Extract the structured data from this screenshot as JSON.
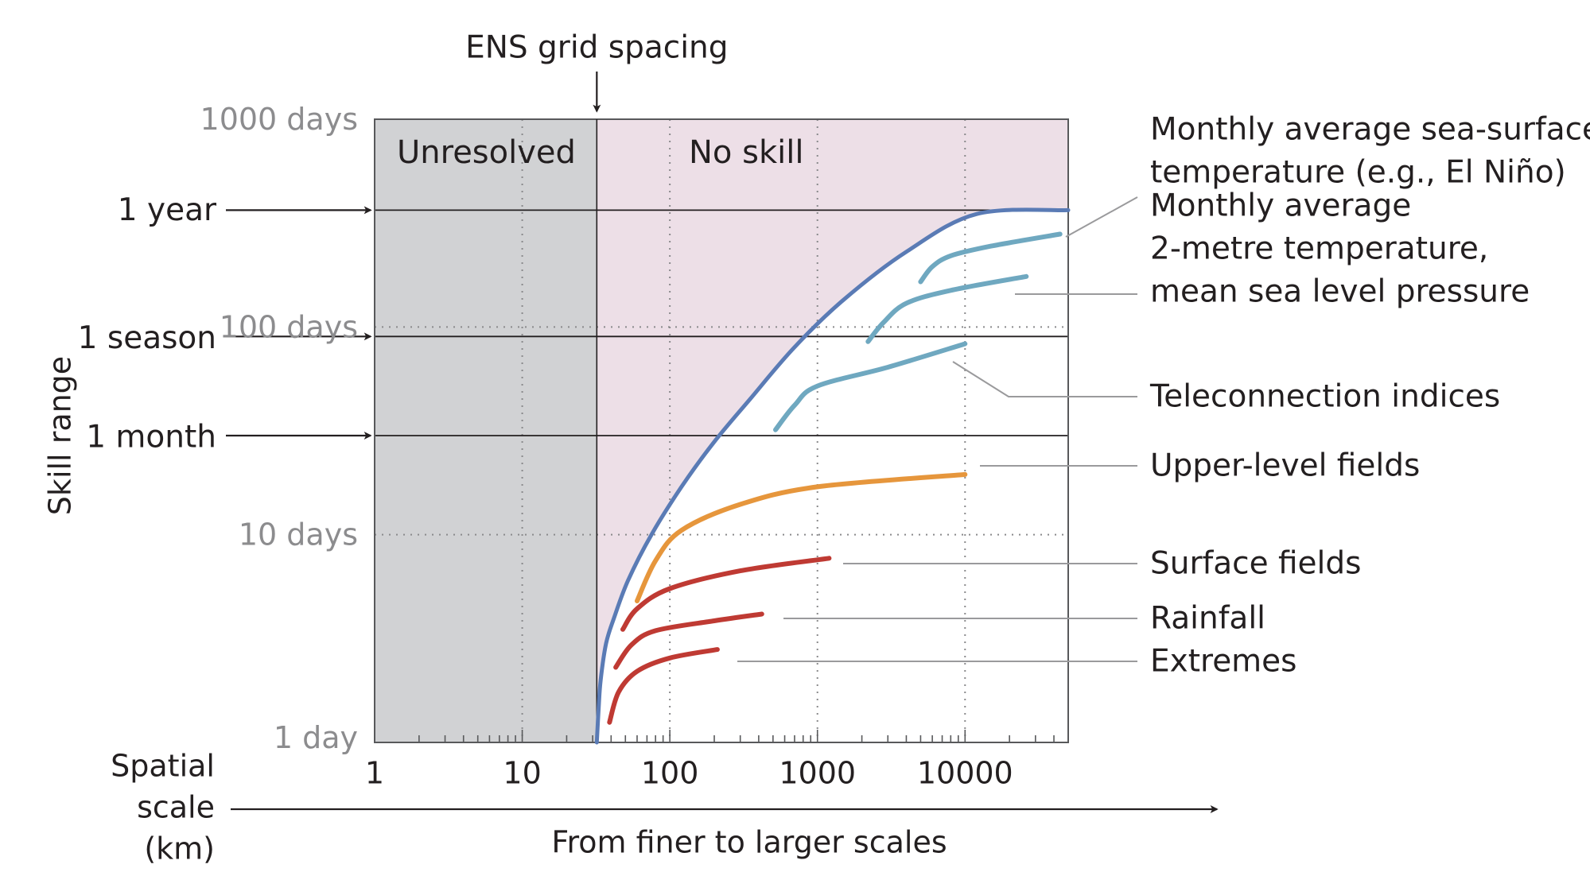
{
  "chart_data": {
    "type": "line",
    "title": "",
    "x_scale": "log",
    "y_scale": "log",
    "xlim": [
      1,
      50000
    ],
    "ylim": [
      1,
      1000
    ],
    "x_ticks": [
      {
        "value": 1,
        "label": "1"
      },
      {
        "value": 10,
        "label": "10"
      },
      {
        "value": 100,
        "label": "100"
      },
      {
        "value": 1000,
        "label": "1000"
      },
      {
        "value": 10000,
        "label": "10000"
      }
    ],
    "y_ticks": [
      {
        "value": 1,
        "label": "1 day"
      },
      {
        "value": 10,
        "label": "10 days"
      },
      {
        "value": 100,
        "label": "100 days"
      },
      {
        "value": 1000,
        "label": "1000 days"
      }
    ],
    "x_axis": {
      "label": "Spatial scale (km)",
      "label_lines": [
        "Spatial",
        "scale",
        "(km)"
      ],
      "sublabel": "From finer to larger scales"
    },
    "y_axis": {
      "label": "Skill range"
    },
    "grid": "dotted",
    "ens_grid_spacing": {
      "label": "ENS grid spacing",
      "x": 32
    },
    "regions": {
      "unresolved": {
        "label": "Unresolved",
        "color": "#d1d2d4"
      },
      "no_skill": {
        "label": "No skill",
        "color": "#eddfe7"
      }
    },
    "reference_lines": [
      {
        "label": "1 year",
        "y": 365
      },
      {
        "label": "1 season",
        "y": 90
      },
      {
        "label": "1 month",
        "y": 30
      }
    ],
    "colors": {
      "envelope": "#5a7bb5",
      "sst_group": "#6fa8c0",
      "upper_level": "#e6963c",
      "surface_group": "#bf3a33"
    },
    "series": [
      {
        "key": "skill_limit",
        "color": "#5a7bb5",
        "points": [
          [
            32,
            1
          ],
          [
            33,
            1.5
          ],
          [
            34,
            2
          ],
          [
            37,
            3
          ],
          [
            42,
            4
          ],
          [
            52,
            6
          ],
          [
            75,
            10
          ],
          [
            120,
            17
          ],
          [
            200,
            28
          ],
          [
            350,
            45
          ],
          [
            700,
            80
          ],
          [
            1500,
            135
          ],
          [
            4000,
            230
          ],
          [
            12000,
            350
          ],
          [
            50000,
            365
          ]
        ]
      },
      {
        "key": "sst",
        "name": "Monthly average sea-surface temperature (e.g., El Niño)",
        "name_lines": [
          "Monthly average sea-surface",
          "temperature (e.g., El Niño)"
        ],
        "color": "#6fa8c0",
        "points": [
          [
            5000,
            165
          ],
          [
            6000,
            195
          ],
          [
            8000,
            220
          ],
          [
            15000,
            245
          ],
          [
            44000,
            280
          ]
        ]
      },
      {
        "key": "t2m",
        "name": "Monthly average 2-metre temperature, mean sea level pressure",
        "name_lines": [
          "Monthly average",
          "2-metre temperature,",
          "mean sea level pressure"
        ],
        "color": "#6fa8c0",
        "points": [
          [
            2200,
            85
          ],
          [
            2800,
            105
          ],
          [
            4000,
            130
          ],
          [
            8000,
            150
          ],
          [
            26000,
            175
          ]
        ]
      },
      {
        "key": "teleconnection",
        "name": "Teleconnection indices",
        "name_lines": [
          "Teleconnection indices"
        ],
        "color": "#6fa8c0",
        "points": [
          [
            520,
            32
          ],
          [
            700,
            42
          ],
          [
            1000,
            52
          ],
          [
            3000,
            64
          ],
          [
            10000,
            83
          ]
        ]
      },
      {
        "key": "upper_level",
        "name": "Upper-level fields",
        "name_lines": [
          "Upper-level fields"
        ],
        "color": "#e6963c",
        "points": [
          [
            60,
            4.8
          ],
          [
            80,
            7.5
          ],
          [
            120,
            10.5
          ],
          [
            300,
            14
          ],
          [
            1000,
            17
          ],
          [
            10000,
            19.5
          ]
        ]
      },
      {
        "key": "surface",
        "name": "Surface fields",
        "name_lines": [
          "Surface fields"
        ],
        "color": "#bf3a33",
        "points": [
          [
            48,
            3.5
          ],
          [
            60,
            4.4
          ],
          [
            100,
            5.5
          ],
          [
            300,
            6.7
          ],
          [
            1200,
            7.7
          ]
        ]
      },
      {
        "key": "rainfall",
        "name": "Rainfall",
        "name_lines": [
          "Rainfall"
        ],
        "color": "#bf3a33",
        "points": [
          [
            43,
            2.3
          ],
          [
            55,
            2.95
          ],
          [
            80,
            3.45
          ],
          [
            200,
            3.85
          ],
          [
            420,
            4.15
          ]
        ]
      },
      {
        "key": "extremes",
        "name": "Extremes",
        "name_lines": [
          "Extremes"
        ],
        "color": "#bf3a33",
        "points": [
          [
            39,
            1.25
          ],
          [
            45,
            1.75
          ],
          [
            60,
            2.2
          ],
          [
            100,
            2.55
          ],
          [
            210,
            2.8
          ]
        ]
      }
    ]
  }
}
